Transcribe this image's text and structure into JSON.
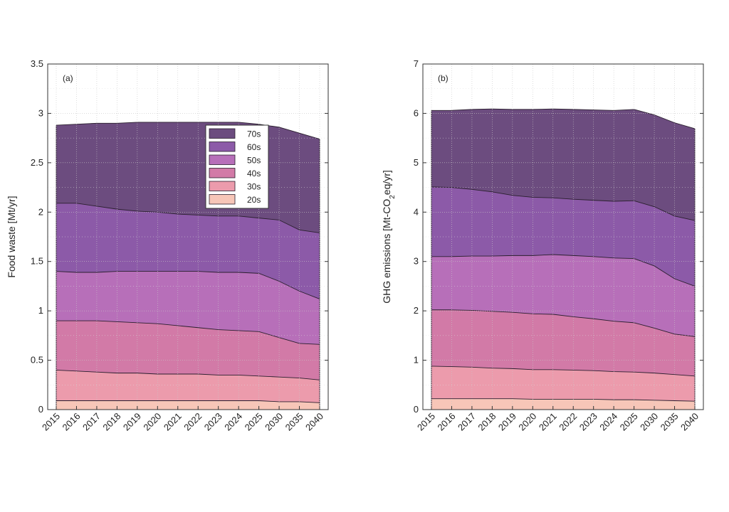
{
  "chart_data": [
    {
      "type": "area",
      "stacked": true,
      "panel_label": "(a)",
      "title": "",
      "xlabel": "",
      "ylabel": "Food waste [Mt/yr]",
      "categories": [
        "2015",
        "2016",
        "2017",
        "2018",
        "2019",
        "2020",
        "2021",
        "2022",
        "2023",
        "2024",
        "2025",
        "2030",
        "2035",
        "2040"
      ],
      "ylim": [
        0,
        3.5
      ],
      "yticks": [
        "0",
        "0.5",
        "1",
        "1.5",
        "2",
        "2.5",
        "3",
        "3.5"
      ],
      "grid": true,
      "legend": {
        "placement": "top-center",
        "order": [
          "70s",
          "60s",
          "50s",
          "40s",
          "30s",
          "20s"
        ]
      },
      "series": [
        {
          "name": "20s",
          "color": "#f7c6b8",
          "values": [
            0.09,
            0.09,
            0.09,
            0.09,
            0.09,
            0.09,
            0.09,
            0.09,
            0.09,
            0.09,
            0.09,
            0.08,
            0.08,
            0.07
          ]
        },
        {
          "name": "30s",
          "color": "#ec9bac",
          "values": [
            0.31,
            0.3,
            0.29,
            0.28,
            0.28,
            0.27,
            0.27,
            0.27,
            0.26,
            0.26,
            0.25,
            0.25,
            0.24,
            0.23
          ]
        },
        {
          "name": "40s",
          "color": "#d27aa7",
          "values": [
            0.5,
            0.51,
            0.52,
            0.52,
            0.51,
            0.51,
            0.49,
            0.47,
            0.46,
            0.45,
            0.45,
            0.4,
            0.35,
            0.36
          ]
        },
        {
          "name": "50s",
          "color": "#b76fb9",
          "values": [
            0.5,
            0.49,
            0.49,
            0.51,
            0.52,
            0.53,
            0.55,
            0.57,
            0.58,
            0.59,
            0.59,
            0.57,
            0.53,
            0.46
          ]
        },
        {
          "name": "60s",
          "color": "#8c5aa8",
          "values": [
            0.69,
            0.7,
            0.67,
            0.63,
            0.61,
            0.6,
            0.58,
            0.57,
            0.57,
            0.57,
            0.56,
            0.62,
            0.62,
            0.67
          ]
        },
        {
          "name": "70s",
          "color": "#6c4c7f",
          "values": [
            0.79,
            0.8,
            0.84,
            0.87,
            0.9,
            0.91,
            0.93,
            0.94,
            0.95,
            0.95,
            0.95,
            0.94,
            0.98,
            0.95
          ]
        }
      ]
    },
    {
      "type": "area",
      "stacked": true,
      "panel_label": "(b)",
      "title": "",
      "xlabel": "",
      "ylabel": "GHG emissions [Mt-CO2eq/yr]",
      "ylabel_parts": {
        "before": "GHG emissions [Mt-CO",
        "subscript": "2",
        "after": "eq/yr]"
      },
      "categories": [
        "2015",
        "2016",
        "2017",
        "2018",
        "2019",
        "2020",
        "2021",
        "2022",
        "2023",
        "2024",
        "2025",
        "2030",
        "2035",
        "2040"
      ],
      "ylim": [
        0,
        7
      ],
      "yticks": [
        "0",
        "1",
        "2",
        "3",
        "4",
        "5",
        "6",
        "7"
      ],
      "grid": true,
      "series": [
        {
          "name": "20s",
          "color": "#f7c6b8",
          "values": [
            0.22,
            0.22,
            0.22,
            0.22,
            0.22,
            0.21,
            0.21,
            0.21,
            0.21,
            0.2,
            0.2,
            0.19,
            0.18,
            0.17
          ]
        },
        {
          "name": "30s",
          "color": "#ec9bac",
          "values": [
            0.66,
            0.65,
            0.64,
            0.62,
            0.61,
            0.6,
            0.6,
            0.59,
            0.58,
            0.57,
            0.56,
            0.55,
            0.53,
            0.51
          ]
        },
        {
          "name": "40s",
          "color": "#d27aa7",
          "values": [
            1.14,
            1.15,
            1.15,
            1.15,
            1.14,
            1.13,
            1.12,
            1.08,
            1.05,
            1.02,
            1.0,
            0.91,
            0.82,
            0.8
          ]
        },
        {
          "name": "50s",
          "color": "#b76fb9",
          "values": [
            1.08,
            1.08,
            1.1,
            1.12,
            1.15,
            1.18,
            1.21,
            1.24,
            1.26,
            1.28,
            1.3,
            1.26,
            1.12,
            1.02
          ]
        },
        {
          "name": "60s",
          "color": "#8c5aa8",
          "values": [
            1.41,
            1.4,
            1.35,
            1.3,
            1.22,
            1.18,
            1.15,
            1.14,
            1.14,
            1.15,
            1.17,
            1.2,
            1.27,
            1.33
          ]
        },
        {
          "name": "70s",
          "color": "#6c4c7f",
          "values": [
            1.55,
            1.56,
            1.62,
            1.68,
            1.74,
            1.78,
            1.8,
            1.82,
            1.83,
            1.84,
            1.85,
            1.86,
            1.89,
            1.86
          ]
        }
      ]
    }
  ]
}
